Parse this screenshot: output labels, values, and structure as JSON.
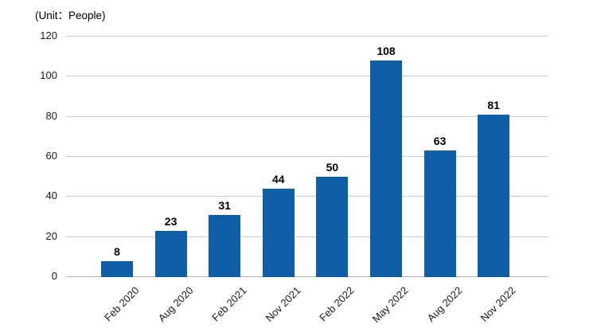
{
  "chart_data": {
    "type": "bar",
    "title": "",
    "unit_label": "(Unit：People)",
    "categories": [
      "Feb 2020",
      "Aug 2020",
      "Feb 2021",
      "Nov 2021",
      "Feb 2022",
      "May 2022",
      "Aug 2022",
      "Nov 2022"
    ],
    "values": [
      8,
      23,
      31,
      44,
      50,
      108,
      63,
      81
    ],
    "y_ticks": [
      0,
      20,
      40,
      60,
      80,
      100,
      120
    ],
    "ylim": [
      0,
      120
    ],
    "xlabel": "",
    "ylabel": "",
    "grid": "horizontal",
    "legend": "none",
    "bar_color": "#0e5fa5",
    "gridline_color": "#c9cdd1",
    "baseline_color": "#aeb4b9",
    "value_label_color": "#000000",
    "tick_label_color": "#1a1a1a"
  }
}
